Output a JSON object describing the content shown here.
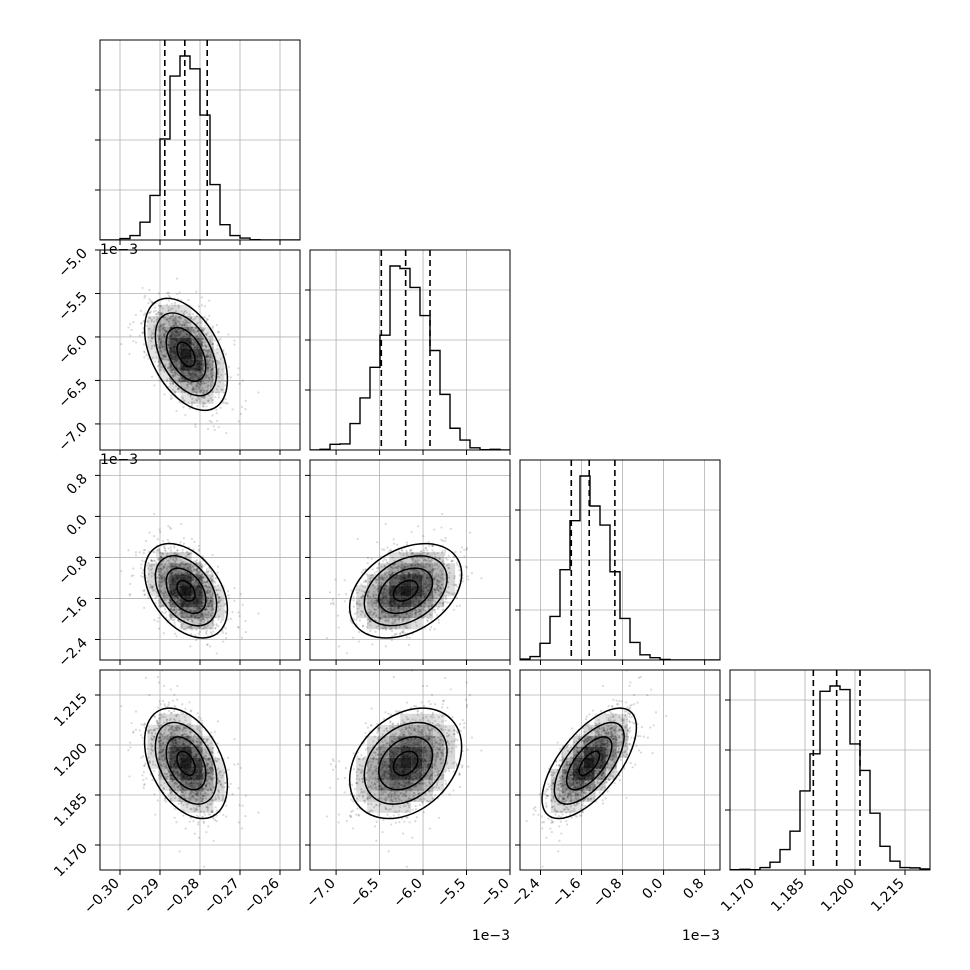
{
  "chart_data": {
    "type": "corner",
    "grid": true,
    "colors": {
      "axis": "#000000",
      "grid": "#b0b0b0",
      "hist": "#000000",
      "points": "#000000",
      "contour": "#000000"
    },
    "params": [
      {
        "range": [
          -0.305,
          -0.255
        ],
        "ticks": [
          -0.3,
          -0.29,
          -0.28,
          -0.27,
          -0.26
        ],
        "tick_labels": [
          "−0.30",
          "−0.29",
          "−0.28",
          "−0.27",
          "−0.26"
        ],
        "offset": "",
        "mean": -0.2835,
        "sd": 0.0045,
        "quantiles": [
          -0.2888,
          -0.2838,
          -0.2782
        ],
        "hist_ticks": [
          0.25,
          0.5,
          0.75
        ]
      },
      {
        "range": [
          -7.3,
          -5.0
        ],
        "ticks": [
          -7.0,
          -6.5,
          -6.0,
          -5.5,
          -5.0
        ],
        "tick_labels": [
          "−7.0",
          "−6.5",
          "−6.0",
          "−5.5",
          "−5.0"
        ],
        "offset": "1e−3",
        "mean": -6.2,
        "sd": 0.28,
        "quantiles": [
          -6.48,
          -6.2,
          -5.92
        ],
        "hist_ticks": [
          0.3,
          0.55,
          0.8
        ]
      },
      {
        "range": [
          -2.8,
          1.1
        ],
        "ticks": [
          -2.4,
          -1.6,
          -0.8,
          0.0,
          0.8
        ],
        "tick_labels": [
          "−2.4",
          "−1.6",
          "−0.8",
          "0.0",
          "0.8"
        ],
        "offset": "1e−3",
        "mean": -1.45,
        "sd": 0.4,
        "quantiles": [
          -1.8,
          -1.45,
          -0.95
        ],
        "hist_ticks": [
          0.25,
          0.5,
          0.75
        ]
      },
      {
        "range": [
          1.1625,
          1.2225
        ],
        "ticks": [
          1.17,
          1.185,
          1.2,
          1.215
        ],
        "tick_labels": [
          "1.170",
          "1.185",
          "1.200",
          "1.215"
        ],
        "offset": "",
        "mean": 1.1945,
        "sd": 0.0072,
        "quantiles": [
          1.1875,
          1.1945,
          1.2015
        ],
        "hist_ticks": [
          0.3,
          0.6,
          0.85
        ]
      }
    ],
    "correlations": [
      [
        1,
        -0.45,
        -0.4,
        -0.4
      ],
      [
        -0.45,
        1,
        0.35,
        0.3
      ],
      [
        -0.4,
        0.35,
        1,
        0.65
      ],
      [
        -0.4,
        0.3,
        0.65,
        1
      ]
    ]
  }
}
